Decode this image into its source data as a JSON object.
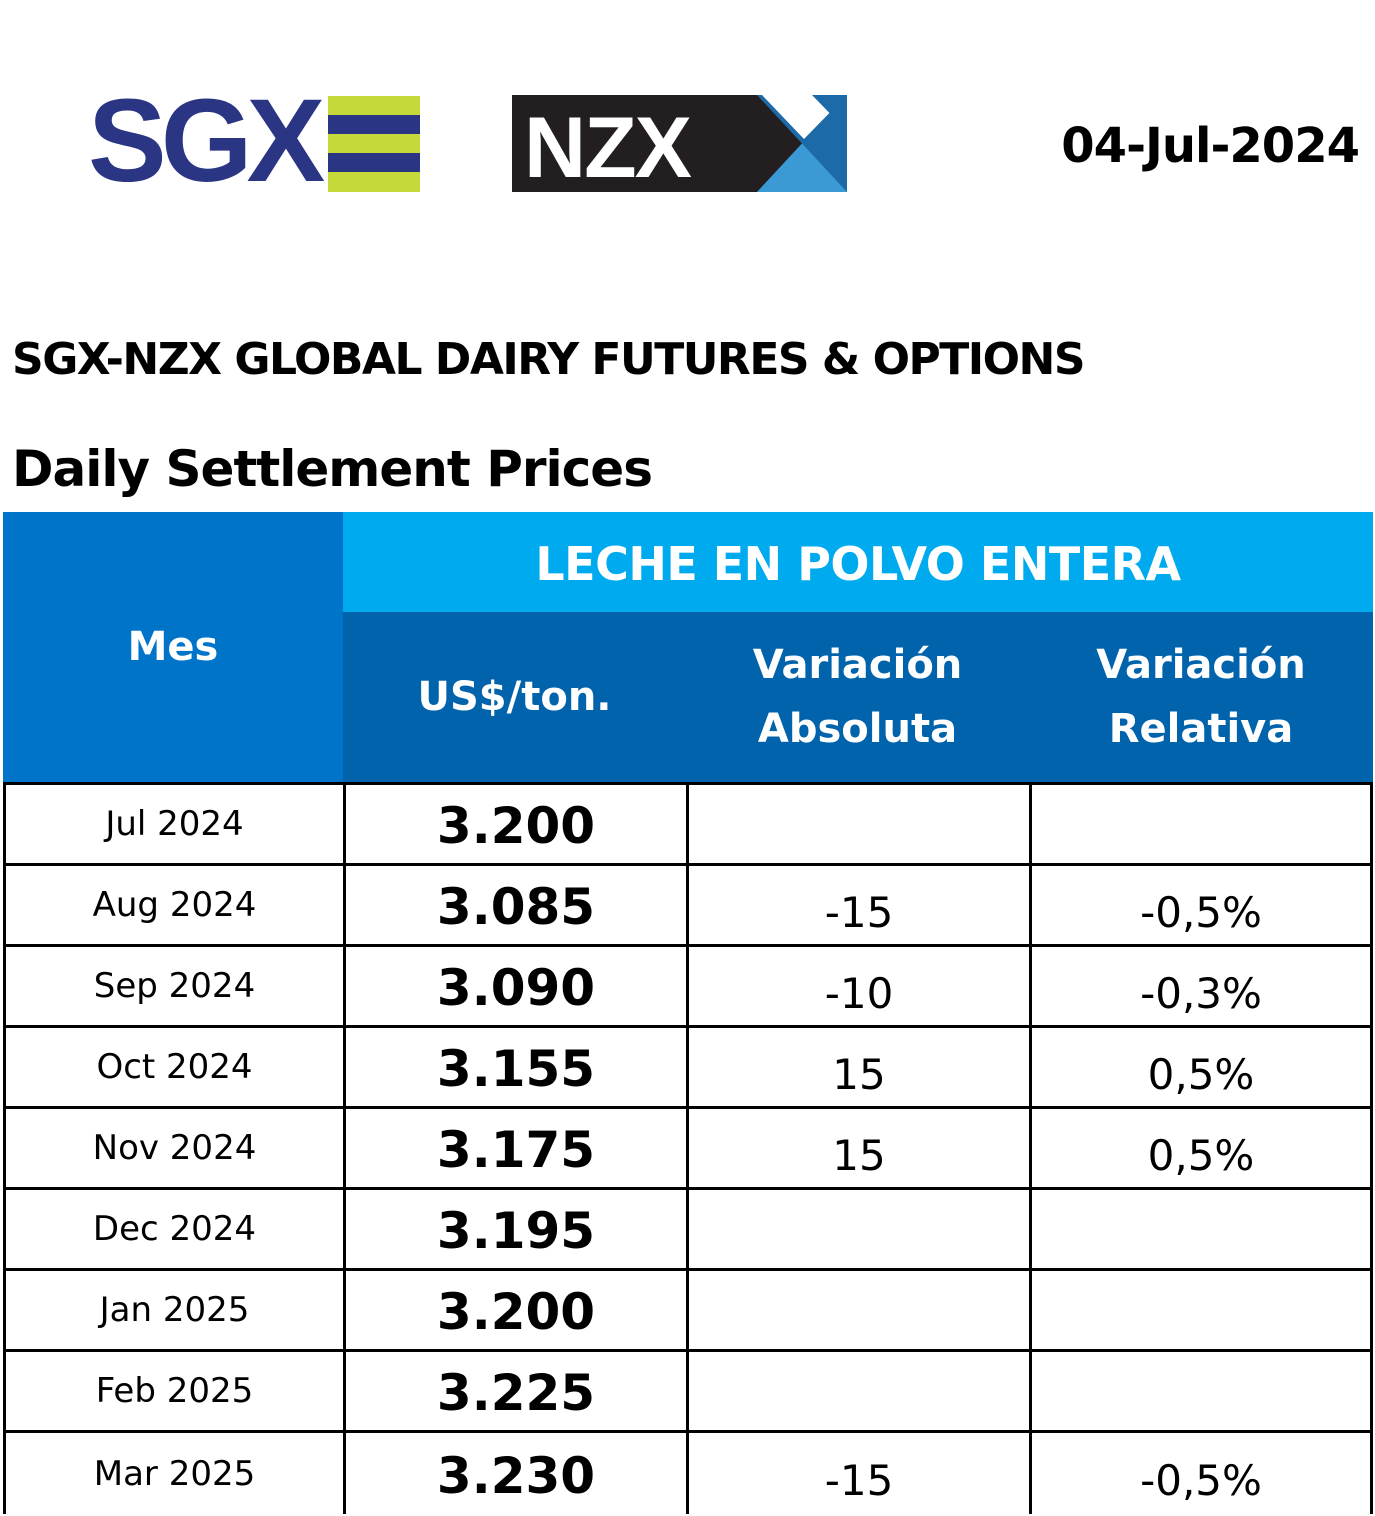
{
  "header": {
    "logo_sgx_text": "SGX",
    "logo_nzx_text": "NZX",
    "date": "04-Jul-2024",
    "colors": {
      "sgx_navy": "#2a3583",
      "sgx_lime": "#c5d93a",
      "nzx_black": "#231f20",
      "nzx_blue": "#1d6aa8",
      "nzx_light_blue": "#3b9ad6"
    }
  },
  "title": "SGX-NZX GLOBAL DAIRY FUTURES & OPTIONS",
  "subtitle": "Daily Settlement Prices",
  "table": {
    "header_mes": "Mes",
    "header_product": "LECHE EN POLVO ENTERA",
    "header_price": "US$/ton.",
    "header_abs": "Variación\nAbsoluta",
    "header_rel": "Variación\nRelativa",
    "colors": {
      "mes_bg": "#0074c8",
      "product_bg": "#00aaee",
      "sub_bg": "#0063ab"
    },
    "rows": [
      {
        "mes": "Jul 2024",
        "price": "3.200",
        "abs": "",
        "rel": ""
      },
      {
        "mes": "Aug 2024",
        "price": "3.085",
        "abs": "-15",
        "rel": "-0,5%"
      },
      {
        "mes": "Sep 2024",
        "price": "3.090",
        "abs": "-10",
        "rel": "-0,3%"
      },
      {
        "mes": "Oct 2024",
        "price": "3.155",
        "abs": "15",
        "rel": "0,5%"
      },
      {
        "mes": "Nov 2024",
        "price": "3.175",
        "abs": "15",
        "rel": "0,5%"
      },
      {
        "mes": "Dec 2024",
        "price": "3.195",
        "abs": "",
        "rel": ""
      },
      {
        "mes": "Jan 2025",
        "price": "3.200",
        "abs": "",
        "rel": ""
      },
      {
        "mes": "Feb 2025",
        "price": "3.225",
        "abs": "",
        "rel": ""
      },
      {
        "mes": "Mar 2025",
        "price": "3.230",
        "abs": "-15",
        "rel": "-0,5%"
      }
    ]
  }
}
